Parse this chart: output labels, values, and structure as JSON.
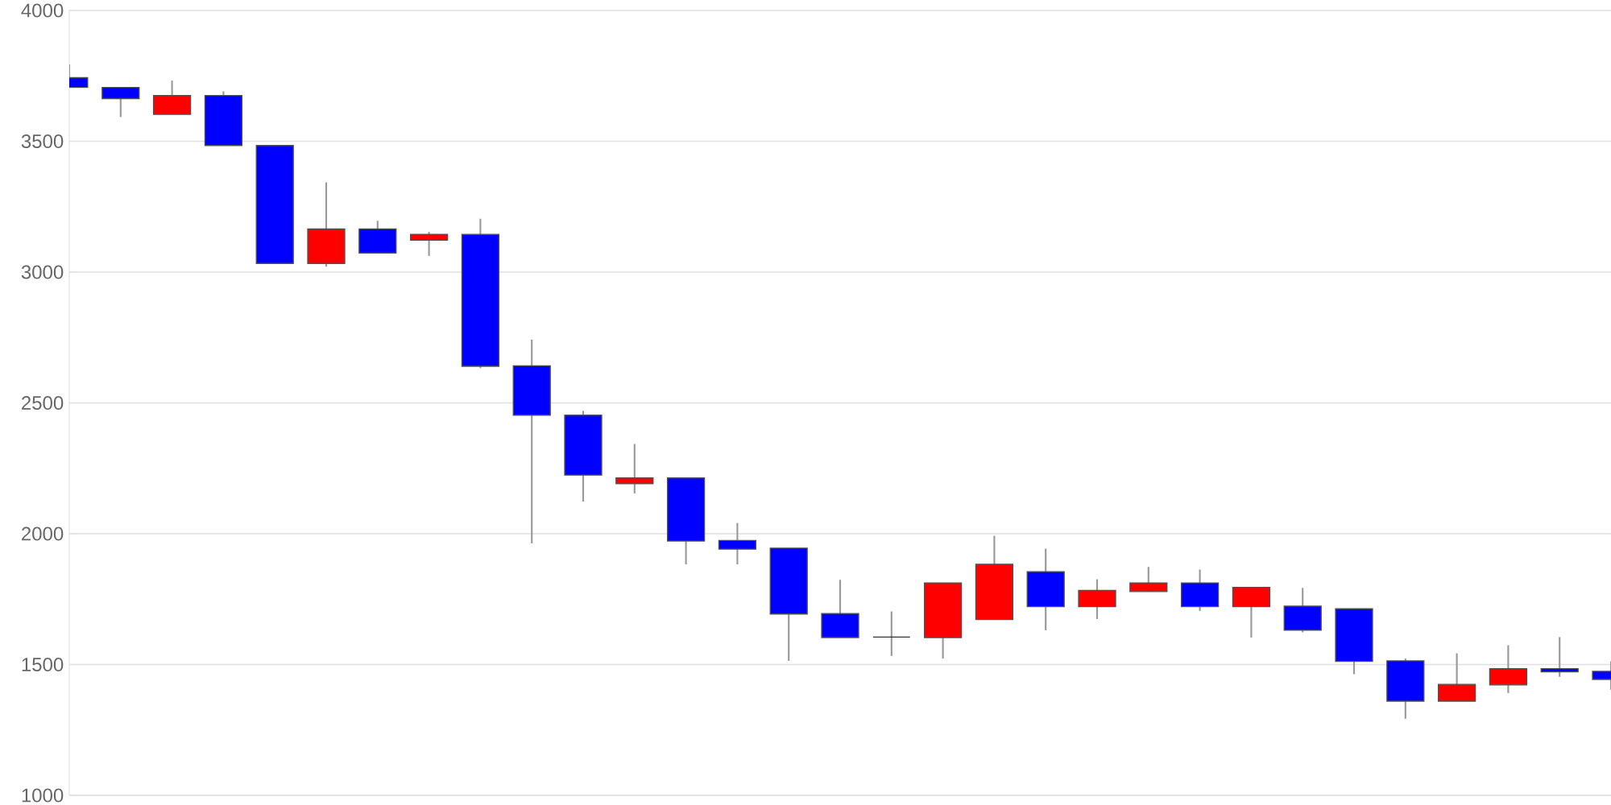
{
  "chart_data": {
    "type": "candlestick",
    "categories": [
      null,
      null,
      null,
      null,
      null,
      null,
      null,
      null,
      null,
      null,
      null,
      null,
      null,
      null,
      null,
      null,
      null,
      null,
      null,
      null,
      null,
      null,
      null,
      null,
      null,
      null,
      null,
      null,
      null,
      null,
      null
    ],
    "ohlc": [
      [
        3743,
        3794,
        3706,
        3706
      ],
      [
        3706,
        3706,
        3593,
        3663
      ],
      [
        3603,
        3732,
        3603,
        3675
      ],
      [
        3675,
        3691,
        3484,
        3484
      ],
      [
        3484,
        3484,
        3033,
        3033
      ],
      [
        3033,
        3343,
        3021,
        3165
      ],
      [
        3165,
        3196,
        3073,
        3073
      ],
      [
        3122,
        3154,
        3062,
        3144
      ],
      [
        3144,
        3204,
        2633,
        2640
      ],
      [
        2642,
        2742,
        1963,
        2453
      ],
      [
        2453,
        2470,
        2123,
        2224
      ],
      [
        2191,
        2343,
        2154,
        2213
      ],
      [
        2213,
        2213,
        1883,
        1972
      ],
      [
        1974,
        2041,
        1883,
        1941
      ],
      [
        1945,
        1945,
        1514,
        1693
      ],
      [
        1695,
        1824,
        1603,
        1603
      ],
      [
        1605,
        1703,
        1533,
        1605
      ],
      [
        1603,
        1812,
        1523,
        1812
      ],
      [
        1672,
        1992,
        1672,
        1883
      ],
      [
        1855,
        1943,
        1631,
        1721
      ],
      [
        1721,
        1826,
        1674,
        1783
      ],
      [
        1779,
        1873,
        1779,
        1812
      ],
      [
        1812,
        1863,
        1705,
        1721
      ],
      [
        1721,
        1795,
        1603,
        1795
      ],
      [
        1723,
        1793,
        1623,
        1631
      ],
      [
        1713,
        1713,
        1463,
        1512
      ],
      [
        1514,
        1523,
        1293,
        1360
      ],
      [
        1360,
        1543,
        1360,
        1424
      ],
      [
        1422,
        1574,
        1391,
        1484
      ],
      [
        1484,
        1605,
        1453,
        1472
      ],
      [
        1474,
        1512,
        1404,
        1443
      ]
    ],
    "colors": [
      "#0000ff",
      "#0000ff",
      "#ff0000",
      "#0000ff",
      "#0000ff",
      "#ff0000",
      "#0000ff",
      "#ff0000",
      "#0000ff",
      "#0000ff",
      "#0000ff",
      "#ff0000",
      "#0000ff",
      "#0000ff",
      "#0000ff",
      "#0000ff",
      "#333333",
      "#ff0000",
      "#ff0000",
      "#0000ff",
      "#ff0000",
      "#ff0000",
      "#0000ff",
      "#ff0000",
      "#0000ff",
      "#0000ff",
      "#0000ff",
      "#ff0000",
      "#ff0000",
      "#0000ff",
      "#0000ff"
    ],
    "ylim": [
      1000,
      4000
    ],
    "yticks": [
      1000,
      1500,
      2000,
      2500,
      3000,
      3500,
      4000
    ],
    "grid": "y"
  }
}
